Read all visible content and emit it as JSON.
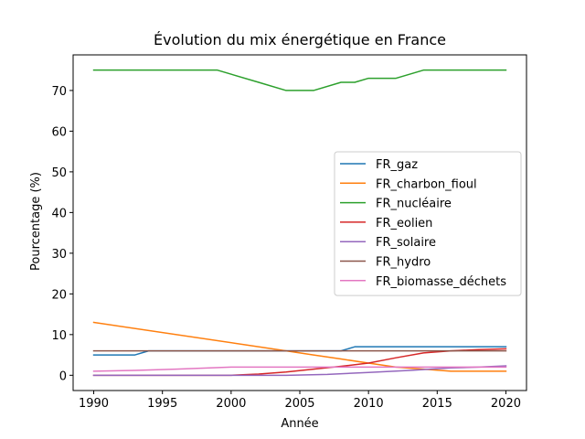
{
  "chart_data": {
    "type": "line",
    "title": "Évolution du mix énergétique en France",
    "xlabel": "Année",
    "ylabel": "Pourcentage (%)",
    "xlim": [
      1988.5,
      2021.5
    ],
    "ylim": [
      -3.75,
      78.75
    ],
    "xticks": [
      1990,
      1995,
      2000,
      2005,
      2010,
      2015,
      2020
    ],
    "yticks": [
      0,
      10,
      20,
      30,
      40,
      50,
      60,
      70
    ],
    "legend_position": "center-right",
    "grid": false,
    "series": [
      {
        "name": "FR_gaz",
        "color": "#1f77b4",
        "points": [
          [
            1990,
            5
          ],
          [
            1993,
            5
          ],
          [
            1994,
            6
          ],
          [
            2008,
            6
          ],
          [
            2009,
            7
          ],
          [
            2020,
            7
          ]
        ]
      },
      {
        "name": "FR_charbon_fioul",
        "color": "#ff7f0e",
        "points": [
          [
            1990,
            13
          ],
          [
            2004,
            6
          ],
          [
            2006,
            5
          ],
          [
            2008,
            4
          ],
          [
            2010,
            3
          ],
          [
            2012,
            2
          ],
          [
            2014,
            1.5
          ],
          [
            2016,
            1
          ],
          [
            2020,
            1
          ]
        ]
      },
      {
        "name": "FR_nucléaire",
        "color": "#2ca02c",
        "points": [
          [
            1990,
            75
          ],
          [
            1999,
            75
          ],
          [
            2002,
            72
          ],
          [
            2004,
            70
          ],
          [
            2006,
            70
          ],
          [
            2008,
            72
          ],
          [
            2009,
            72
          ],
          [
            2010,
            73
          ],
          [
            2012,
            73
          ],
          [
            2014,
            75
          ],
          [
            2020,
            75
          ]
        ]
      },
      {
        "name": "FR_eolien",
        "color": "#d62728",
        "points": [
          [
            1990,
            0
          ],
          [
            2000,
            0
          ],
          [
            2002,
            0.3
          ],
          [
            2004,
            0.8
          ],
          [
            2006,
            1.5
          ],
          [
            2008,
            2.2
          ],
          [
            2010,
            3
          ],
          [
            2012,
            4.3
          ],
          [
            2014,
            5.5
          ],
          [
            2016,
            6
          ],
          [
            2018,
            6.3
          ],
          [
            2020,
            6.5
          ]
        ]
      },
      {
        "name": "FR_solaire",
        "color": "#9467bd",
        "points": [
          [
            1990,
            0
          ],
          [
            2004,
            0
          ],
          [
            2007,
            0.2
          ],
          [
            2010,
            0.7
          ],
          [
            2013,
            1.2
          ],
          [
            2016,
            1.8
          ],
          [
            2018,
            2
          ],
          [
            2020,
            2.3
          ]
        ]
      },
      {
        "name": "FR_hydro",
        "color": "#8c564b",
        "points": [
          [
            1990,
            6
          ],
          [
            2020,
            6
          ]
        ]
      },
      {
        "name": "FR_biomasse_déchets",
        "color": "#e377c2",
        "points": [
          [
            1990,
            1
          ],
          [
            1993,
            1.2
          ],
          [
            1996,
            1.5
          ],
          [
            2000,
            2
          ],
          [
            2020,
            2
          ]
        ]
      }
    ]
  }
}
